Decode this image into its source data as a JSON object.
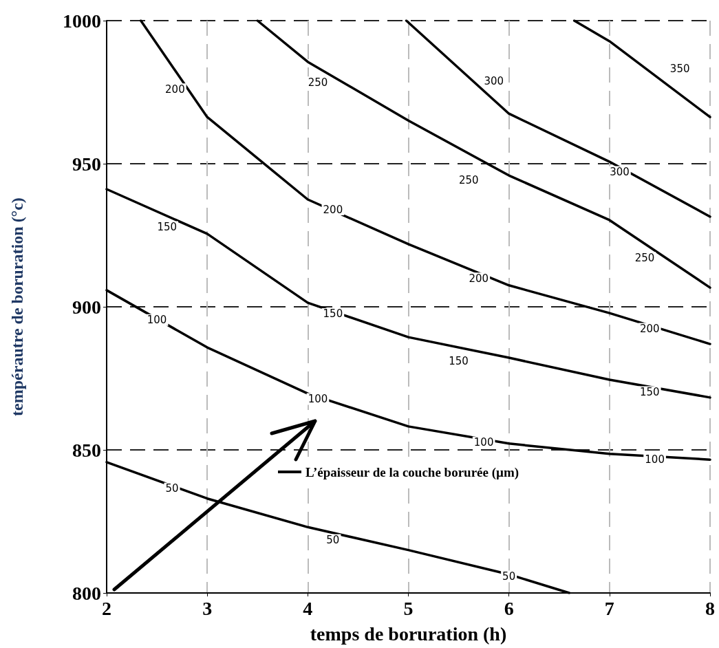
{
  "chart_data": {
    "type": "line",
    "xlabel": "temps de boruration (h)",
    "ylabel": "tempérautre de boruration (°c)",
    "xlim": [
      2,
      8
    ],
    "xticks": [
      2,
      3,
      4,
      5,
      6,
      7,
      8
    ],
    "ylim": [
      800,
      1000
    ],
    "yticks": [
      800,
      850,
      900,
      950,
      1000
    ],
    "grid": true,
    "marker": "none",
    "line_style": "solid",
    "series": [
      {
        "color": "#000000",
        "x": [
          2,
          3,
          4,
          5,
          6,
          6.6
        ],
        "values": [
          845.7,
          833,
          823,
          815,
          806.5,
          800
        ]
      },
      {
        "color": "#000000",
        "x": [
          2,
          3,
          4,
          5,
          6,
          7,
          8
        ],
        "values": [
          905.8,
          885.8,
          869.7,
          858.2,
          852.2,
          848.6,
          846.6
        ]
      },
      {
        "color": "#000000",
        "x": [
          2,
          3,
          4,
          5,
          6,
          7,
          8
        ],
        "values": [
          941.1,
          925.5,
          901.4,
          889.4,
          882.2,
          874.5,
          868.3
        ]
      },
      {
        "color": "#000000",
        "x": [
          2.34,
          3,
          4,
          5,
          6,
          7,
          8
        ],
        "values": [
          1000,
          966.3,
          937.5,
          921.9,
          907.5,
          897.8,
          887
        ]
      },
      {
        "color": "#000000",
        "x": [
          3.5,
          4,
          5,
          6,
          7,
          8
        ],
        "values": [
          1000,
          985.6,
          965.1,
          945.9,
          930.3,
          906.7
        ]
      },
      {
        "color": "#000000",
        "x": [
          4.98,
          6,
          7,
          8
        ],
        "values": [
          1000,
          967.5,
          950.7,
          931.5
        ]
      },
      {
        "color": "#000000",
        "x": [
          6.65,
          7,
          8
        ],
        "values": [
          1000,
          992.8,
          966.3
        ]
      }
    ],
    "annotations": [
      {
        "text": "50",
        "x": 2.65,
        "y": 836.5
      },
      {
        "text": "50",
        "x": 4.25,
        "y": 818.5
      },
      {
        "text": "50",
        "x": 6.0,
        "y": 805.8
      },
      {
        "text": "100",
        "x": 2.5,
        "y": 895.4
      },
      {
        "text": "100",
        "x": 4.1,
        "y": 867.8
      },
      {
        "text": "100",
        "x": 5.75,
        "y": 852.6
      },
      {
        "text": "100",
        "x": 7.45,
        "y": 846.6
      },
      {
        "text": "150",
        "x": 2.6,
        "y": 927.9
      },
      {
        "text": "150",
        "x": 4.25,
        "y": 897.5
      },
      {
        "text": "150",
        "x": 5.5,
        "y": 881
      },
      {
        "text": "150",
        "x": 7.4,
        "y": 870.2
      },
      {
        "text": "200",
        "x": 2.68,
        "y": 976
      },
      {
        "text": "200",
        "x": 4.25,
        "y": 934
      },
      {
        "text": "200",
        "x": 5.7,
        "y": 909.9
      },
      {
        "text": "200",
        "x": 7.4,
        "y": 892.3
      },
      {
        "text": "250",
        "x": 4.1,
        "y": 978.4
      },
      {
        "text": "250",
        "x": 5.6,
        "y": 944.2
      },
      {
        "text": "250",
        "x": 7.35,
        "y": 917.1
      },
      {
        "text": "300",
        "x": 5.85,
        "y": 978.8
      },
      {
        "text": "300",
        "x": 7.1,
        "y": 947.1
      },
      {
        "text": "350",
        "x": 7.7,
        "y": 983.2
      },
      "L’épaisseur de la couche borurée (µm)"
    ]
  }
}
